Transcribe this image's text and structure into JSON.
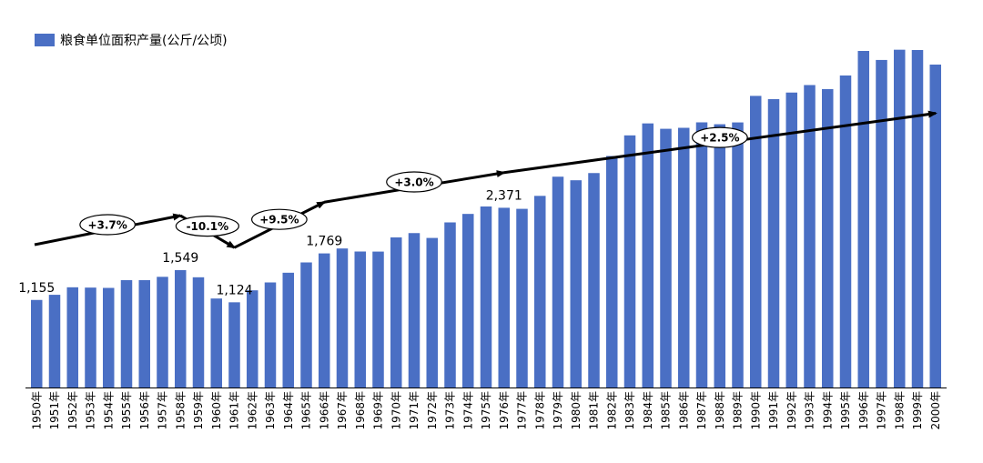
{
  "chart_data": {
    "type": "bar",
    "series": [
      {
        "name": "粮食单位面积产量(公斤/公顷)",
        "color": "#4a6fc4"
      }
    ],
    "categories": [
      "1950年",
      "1951年",
      "1952年",
      "1953年",
      "1954年",
      "1955年",
      "1956年",
      "1957年",
      "1958年",
      "1959年",
      "1960年",
      "1961年",
      "1962年",
      "1963年",
      "1964年",
      "1965年",
      "1966年",
      "1967年",
      "1968年",
      "1969年",
      "1970年",
      "1971年",
      "1972年",
      "1973年",
      "1974年",
      "1975年",
      "1976年",
      "1977年",
      "1978年",
      "1979年",
      "1980年",
      "1981年",
      "1982年",
      "1983年",
      "1984年",
      "1985年",
      "1986年",
      "1987年",
      "1988年",
      "1989年",
      "1990年",
      "1991年",
      "1992年",
      "1993年",
      "1994年",
      "1995年",
      "1996年",
      "1997年",
      "1998年",
      "1999年",
      "2000年"
    ],
    "values": [
      1155,
      1223,
      1322,
      1318,
      1314,
      1416,
      1416,
      1460,
      1549,
      1454,
      1174,
      1124,
      1282,
      1386,
      1514,
      1650,
      1769,
      1834,
      1794,
      1793,
      1980,
      2037,
      1973,
      2178,
      2290,
      2388,
      2371,
      2357,
      2528,
      2781,
      2734,
      2829,
      3054,
      3326,
      3484,
      3413,
      3426,
      3498,
      3473,
      3497,
      3847,
      3804,
      3891,
      3990,
      3937,
      4116,
      4440,
      4321,
      4456,
      4452,
      4260
    ],
    "data_labels": [
      {
        "index": 0,
        "text": "1,155"
      },
      {
        "index": 8,
        "text": "1,549"
      },
      {
        "index": 11,
        "text": "1,124"
      },
      {
        "index": 16,
        "text": "1,769"
      },
      {
        "index": 26,
        "text": "2,371"
      }
    ],
    "annotations": [
      {
        "text": "+3.7%",
        "from_index": 0,
        "to_index": 8
      },
      {
        "text": "-10.1%",
        "from_index": 8,
        "to_index": 11
      },
      {
        "text": "+9.5%",
        "from_index": 11,
        "to_index": 16
      },
      {
        "text": "+3.0%",
        "from_index": 16,
        "to_index": 26
      },
      {
        "text": "+2.5%",
        "from_index": 26,
        "to_index": 50
      }
    ],
    "ylim": [
      0,
      4800
    ],
    "legend_position": "top-left",
    "title": "",
    "xlabel": "",
    "ylabel": ""
  }
}
